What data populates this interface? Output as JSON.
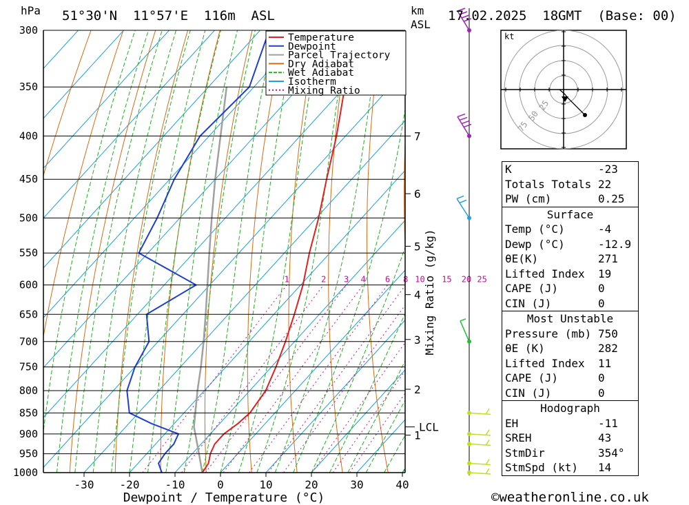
{
  "header": {
    "location": "51°30'N  11°57'E  116m  ASL",
    "datetime": "17.02.2025  18GMT  (Base: 00)",
    "pressure_unit": "hPa",
    "height_unit_line1": "km",
    "height_unit_line2": "ASL"
  },
  "chart_data": {
    "type": "skew-t",
    "xlabel": "Dewpoint / Temperature (°C)",
    "ylabel": "hPa",
    "right_axis_label": "Mixing Ratio (g/kg)",
    "pressure_levels": [
      300,
      350,
      400,
      450,
      500,
      550,
      600,
      650,
      700,
      750,
      800,
      850,
      900,
      950,
      1000
    ],
    "x_ticks": [
      -30,
      -20,
      -10,
      0,
      10,
      20,
      30,
      40
    ],
    "xlim": [
      -40,
      40
    ],
    "ylim": [
      1000,
      300
    ],
    "km_ticks": [
      {
        "label": "7",
        "p": 400
      },
      {
        "label": "6",
        "p": 468
      },
      {
        "label": "5",
        "p": 540
      },
      {
        "label": "4",
        "p": 616
      },
      {
        "label": "3",
        "p": 696
      },
      {
        "label": "2",
        "p": 797
      },
      {
        "label": "1",
        "p": 903
      }
    ],
    "lcl": {
      "label": "LCL",
      "p": 883
    },
    "mixing_ratio_labels": [
      "1",
      "2",
      "3",
      "4",
      "6",
      "8",
      "10",
      "15",
      "20",
      "25"
    ],
    "mixing_ratio_values": [
      1,
      2,
      3,
      4,
      6,
      8,
      10,
      15,
      20,
      25
    ],
    "legend": [
      {
        "name": "Temperature",
        "color": "#e02020"
      },
      {
        "name": "Dewpoint",
        "color": "#1f3fd0"
      },
      {
        "name": "Parcel Trajectory",
        "color": "#a0a0a0"
      },
      {
        "name": "Dry Adiabat",
        "color": "#d86a10"
      },
      {
        "name": "Wet Adiabat",
        "color": "#20b020"
      },
      {
        "name": "Isotherm",
        "color": "#1aa0e0"
      },
      {
        "name": "Mixing Ratio",
        "color": "#c01090"
      }
    ],
    "temperature": {
      "p": [
        1000,
        975,
        950,
        925,
        900,
        875,
        850,
        800,
        750,
        700,
        650,
        600,
        550,
        500,
        450,
        400,
        350,
        300
      ],
      "t": [
        -4,
        -4.5,
        -6,
        -7,
        -7,
        -6,
        -5.5,
        -6.5,
        -9,
        -12,
        -15.5,
        -19.5,
        -24.5,
        -29.5,
        -35.5,
        -42,
        -50,
        -58
      ]
    },
    "dewpoint": {
      "p": [
        1000,
        975,
        950,
        925,
        900,
        875,
        850,
        800,
        750,
        700,
        650,
        600,
        550,
        500,
        450,
        400,
        350,
        300
      ],
      "t": [
        -12.9,
        -15.5,
        -16,
        -16,
        -17,
        -25,
        -32,
        -37,
        -40,
        -42,
        -48,
        -43,
        -62,
        -65,
        -69,
        -72,
        -71,
        -78
      ]
    },
    "parcel": {
      "p": [
        1000,
        950,
        900,
        883,
        850,
        800,
        750,
        700,
        650,
        600,
        550,
        500,
        450,
        400,
        350
      ],
      "t": [
        -4,
        -8.5,
        -13.3,
        -15,
        -17.5,
        -21.5,
        -25.5,
        -30,
        -35,
        -40.5,
        -46.5,
        -53,
        -60,
        -67.5,
        -76
      ]
    },
    "wind_levels": [
      {
        "p": 1000,
        "color": "#c0e020"
      },
      {
        "p": 975,
        "color": "#c0e020"
      },
      {
        "p": 925,
        "color": "#c0e020"
      },
      {
        "p": 900,
        "color": "#c0e020"
      },
      {
        "p": 850,
        "color": "#c0e020"
      },
      {
        "p": 700,
        "color": "#20c030"
      },
      {
        "p": 500,
        "color": "#20a0e0"
      },
      {
        "p": 400,
        "color": "#a020c0"
      },
      {
        "p": 300,
        "color": "#a020c0"
      }
    ],
    "hodograph": {
      "unit": "kt",
      "rings": [
        "25",
        "50",
        "75"
      ],
      "storm_dir_deg": 354,
      "storm_speed_kt": 14
    }
  },
  "indices": {
    "k_label": "K",
    "k_value": "-23",
    "tt_label": "Totals Totals",
    "tt_value": "22",
    "pw_label": "PW (cm)",
    "pw_value": "0.25"
  },
  "surface": {
    "title": "Surface",
    "temp_label": "Temp (°C)",
    "temp_value": "-4",
    "dewp_label": "Dewp (°C)",
    "dewp_value": "-12.9",
    "theta_label": "θE(K)",
    "theta_value": "271",
    "li_label": "Lifted Index",
    "li_value": "19",
    "cape_label": "CAPE (J)",
    "cape_value": "0",
    "cin_label": "CIN (J)",
    "cin_value": "0"
  },
  "most_unstable": {
    "title": "Most Unstable",
    "pressure_label": "Pressure (mb)",
    "pressure_value": "750",
    "theta_label": "θE (K)",
    "theta_value": "282",
    "li_label": "Lifted Index",
    "li_value": "11",
    "cape_label": "CAPE (J)",
    "cape_value": "0",
    "cin_label": "CIN (J)",
    "cin_value": "0"
  },
  "hodograph_table": {
    "title": "Hodograph",
    "eh_label": "EH",
    "eh_value": "-11",
    "sreh_label": "SREH",
    "sreh_value": "43",
    "stmdir_label": "StmDir",
    "stmdir_value": "354°",
    "stmspd_label": "StmSpd (kt)",
    "stmspd_value": "14"
  },
  "footer": {
    "copyright": "©weatheronline.co.uk"
  }
}
